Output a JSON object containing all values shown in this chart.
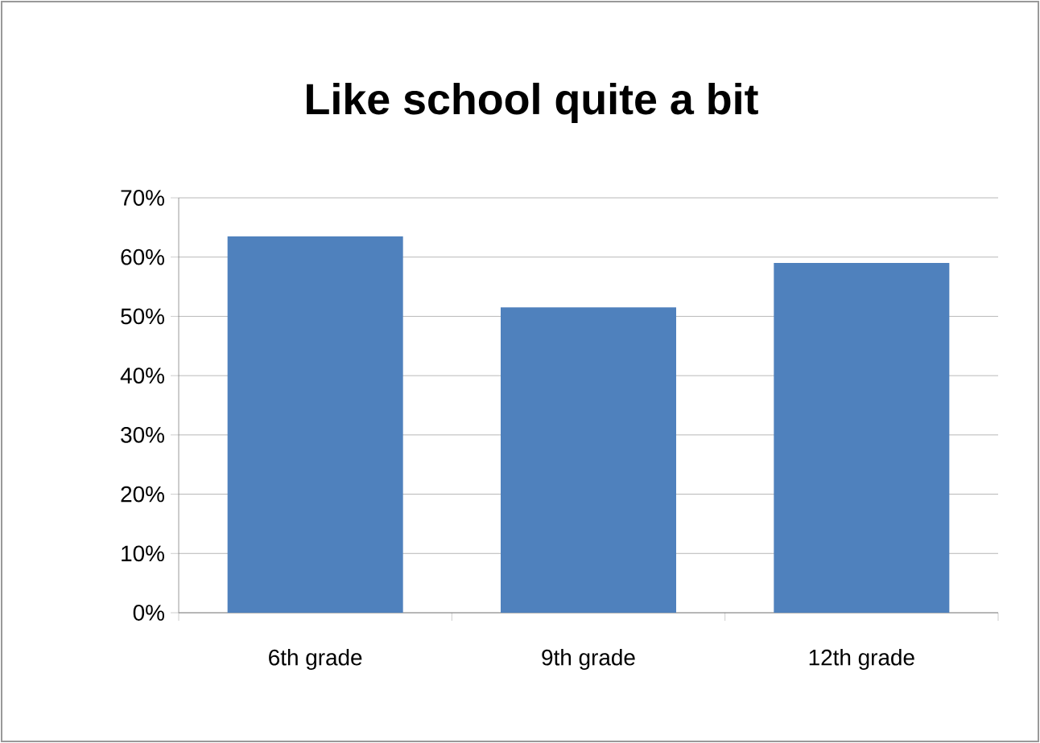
{
  "chart_data": {
    "type": "bar",
    "title": "Like school quite a bit",
    "categories": [
      "6th grade",
      "9th grade",
      "12th grade"
    ],
    "values": [
      63.5,
      51.5,
      59
    ],
    "color": "#4f81bd",
    "ylim": [
      0,
      70
    ],
    "yticks": [
      {
        "value": 0,
        "label": "0%"
      },
      {
        "value": 10,
        "label": "10%"
      },
      {
        "value": 20,
        "label": "20%"
      },
      {
        "value": 30,
        "label": "30%"
      },
      {
        "value": 40,
        "label": "40%"
      },
      {
        "value": 50,
        "label": "50%"
      },
      {
        "value": 60,
        "label": "60%"
      },
      {
        "value": 70,
        "label": "70%"
      }
    ],
    "grid": "y"
  }
}
